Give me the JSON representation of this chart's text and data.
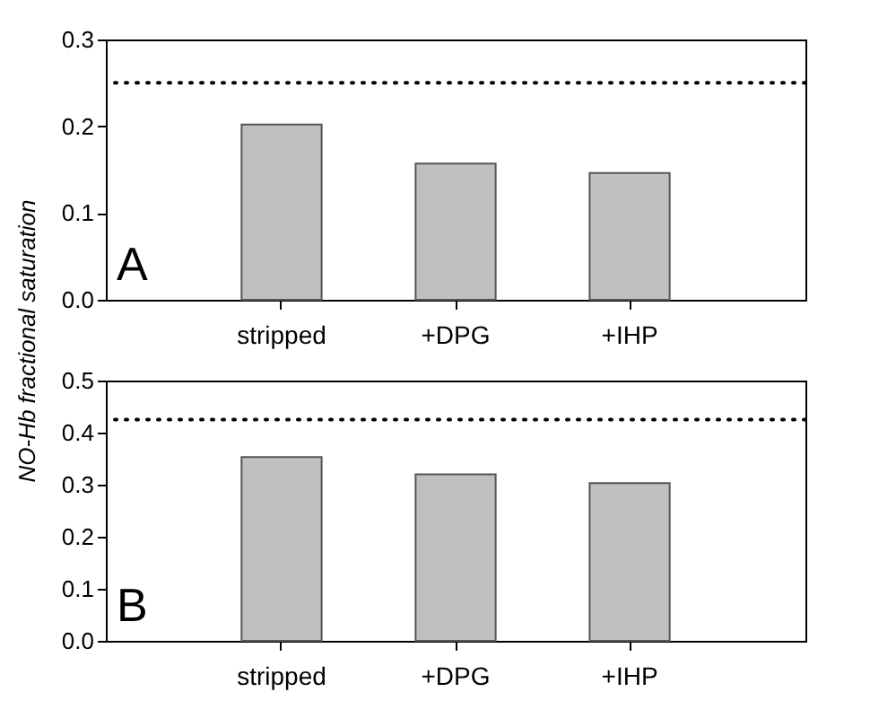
{
  "chart_data": [
    {
      "type": "bar",
      "categories": [
        "stripped",
        "+DPG",
        "+IHP"
      ],
      "values": [
        0.202,
        0.157,
        0.146
      ],
      "color": "#c0c0c0",
      "ylim": [
        0,
        0.3
      ],
      "yticks": [
        {
          "value": 0,
          "label": "0.0"
        },
        0.1,
        0.2,
        0.3
      ],
      "ylabel": "NO-Hb fractional saturation",
      "ref_lines": [
        {
          "axis": "y",
          "value": 0.25,
          "line_style": "dotted",
          "color": "#000000"
        }
      ],
      "annotations": [
        "A"
      ],
      "grid": false
    },
    {
      "type": "bar",
      "categories": [
        "stripped",
        "+DPG",
        "+IHP"
      ],
      "values": [
        0.353,
        0.32,
        0.303
      ],
      "color": "#c0c0c0",
      "ylim": [
        0,
        0.5
      ],
      "yticks": [
        {
          "value": 0,
          "label": "0.0"
        },
        0.1,
        0.2,
        0.3,
        0.4,
        0.5
      ],
      "ref_lines": [
        {
          "axis": "y",
          "value": 0.425,
          "line_style": "dotted",
          "color": "#000000"
        }
      ],
      "annotations": [
        "B"
      ],
      "grid": false
    }
  ]
}
